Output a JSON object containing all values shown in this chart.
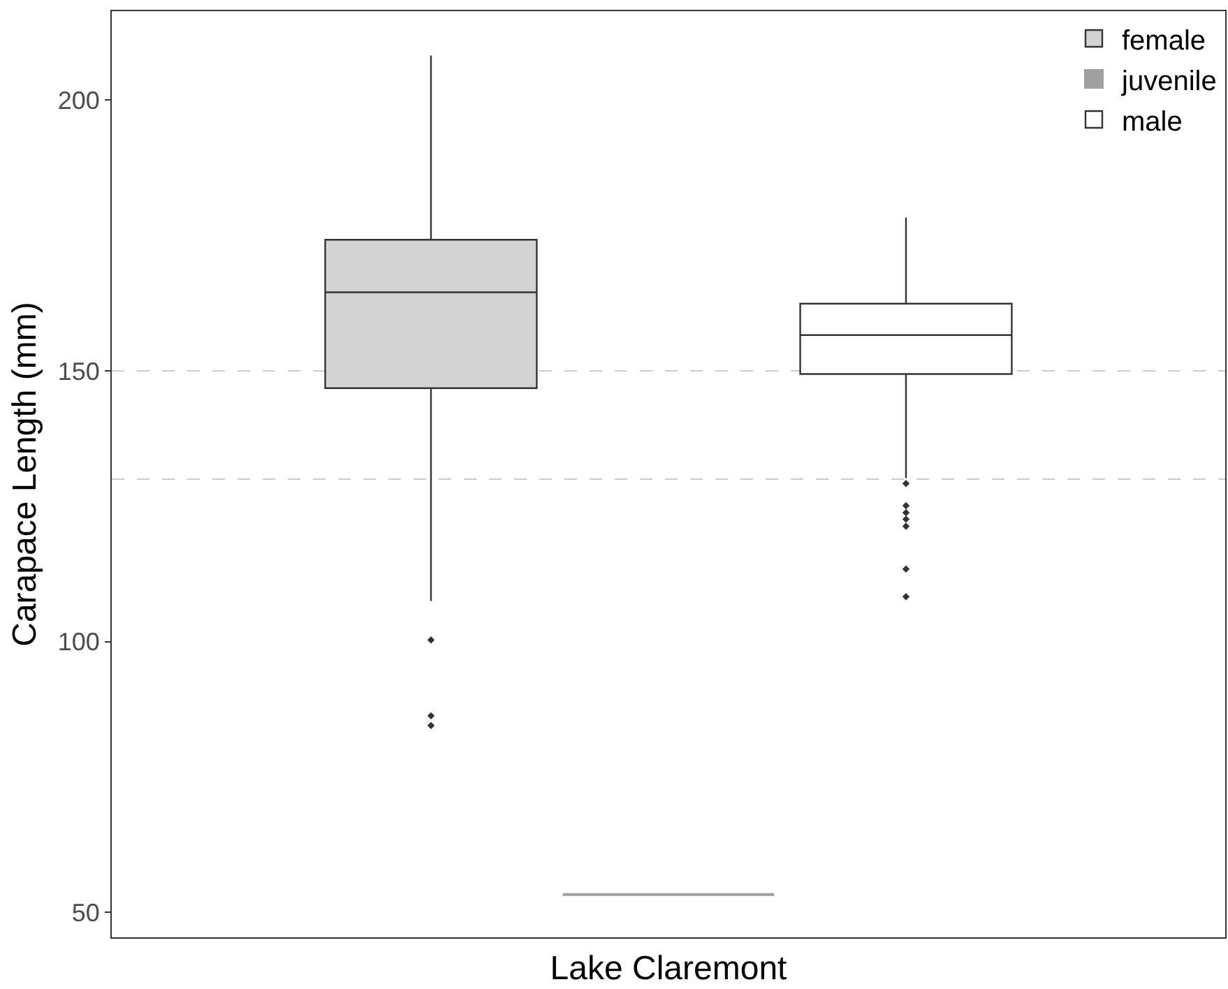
{
  "chart_data": {
    "type": "box",
    "categories": [
      "Lake Claremont"
    ],
    "ylabel": "Carapace Length (mm)",
    "ylim": [
      45.4,
      216.4
    ],
    "yticks": [
      50,
      100,
      150,
      200
    ],
    "grid": false,
    "legend": "top right",
    "series": [
      {
        "name": "female",
        "color": "#d3d3d3",
        "boxes": [
          {
            "low": 107.5,
            "q1": 146.8,
            "median": 164.5,
            "q3": 174.2,
            "high": 208.2,
            "outliers": [
              100.3,
              86.3,
              84.5
            ]
          }
        ]
      },
      {
        "name": "juvenile",
        "color": "#a0a0a0",
        "boxes": [
          {
            "low": 53.3,
            "q1": 53.3,
            "median": 53.3,
            "q3": 53.3,
            "high": 53.3
          }
        ]
      },
      {
        "name": "male",
        "color": "#ffffff",
        "boxes": [
          {
            "low": 130.2,
            "q1": 149.4,
            "median": 156.6,
            "q3": 162.4,
            "high": 178.3,
            "outliers": [
              129.2,
              125.1,
              123.8,
              122.6,
              121.3,
              113.4,
              108.3
            ]
          }
        ]
      }
    ],
    "ref_lines": [
      {
        "axis": "y",
        "value": 150,
        "color": "#cccccc",
        "line_style": "dashed"
      },
      {
        "axis": "y",
        "value": 130,
        "color": "#cccccc",
        "line_style": "dashed"
      }
    ]
  }
}
